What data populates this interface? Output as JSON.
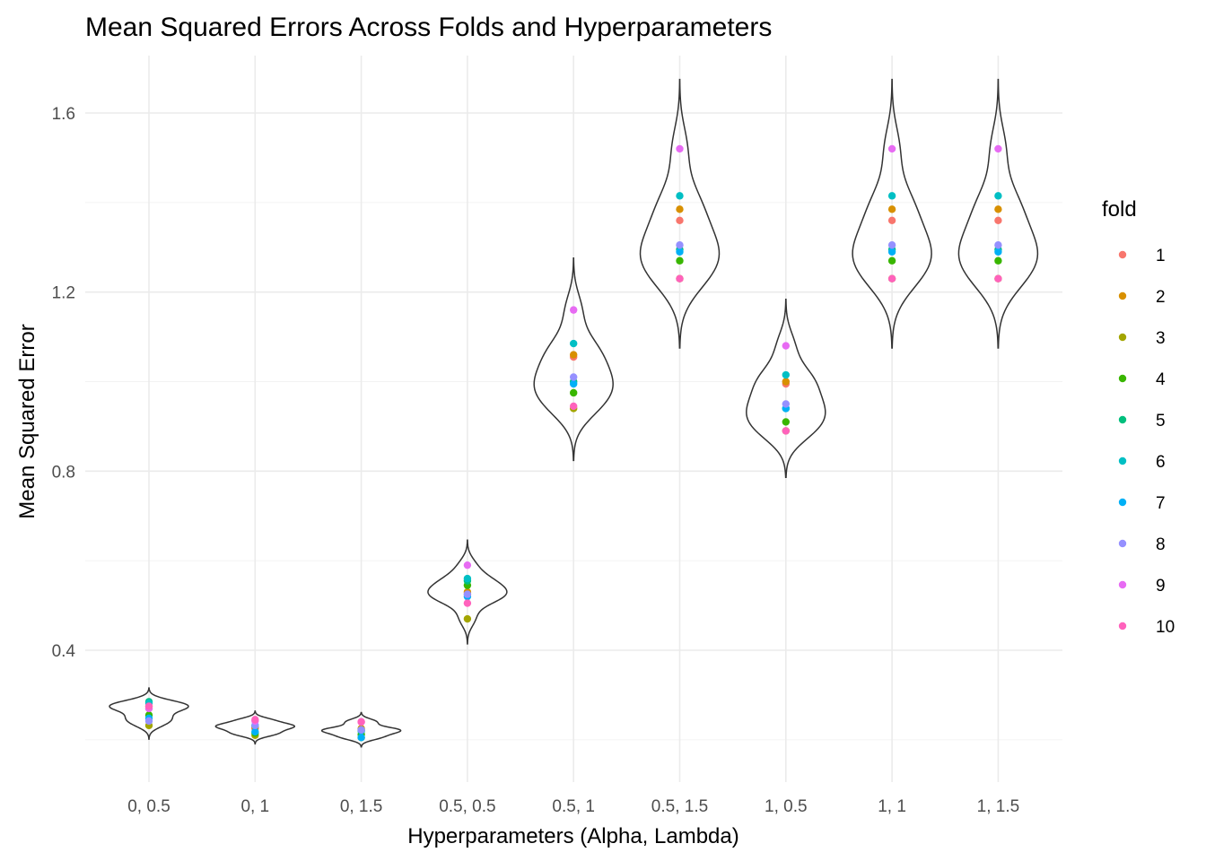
{
  "chart_data": {
    "type": "violin",
    "title": "Mean Squared Errors Across Folds and Hyperparameters",
    "xlabel": "Hyperparameters (Alpha, Lambda)",
    "ylabel": "Mean Squared Error",
    "ylim": [
      0.1,
      1.7
    ],
    "yticks": [
      0.4,
      0.8,
      1.2,
      1.6
    ],
    "ytick_labels": [
      "0.4",
      "0.8",
      "1.2",
      "1.6"
    ],
    "grid": true,
    "legend_position": "right",
    "legend_title": "fold",
    "categories": [
      "0, 0.5",
      "0, 1",
      "0, 1.5",
      "0.5, 0.5",
      "0.5, 1",
      "0.5, 1.5",
      "1, 0.5",
      "1, 1",
      "1, 1.5"
    ],
    "series": [
      {
        "name": "1",
        "color": "#F8766D",
        "values": [
          0.27,
          0.225,
          0.22,
          0.525,
          1.055,
          1.36,
          0.995,
          1.36,
          1.36
        ]
      },
      {
        "name": "2",
        "color": "#D89000",
        "values": [
          0.275,
          0.228,
          0.225,
          0.53,
          1.06,
          1.385,
          1.0,
          1.385,
          1.385
        ]
      },
      {
        "name": "3",
        "color": "#A3A500",
        "values": [
          0.232,
          0.21,
          0.205,
          0.47,
          0.94,
          1.23,
          0.89,
          1.23,
          1.23
        ]
      },
      {
        "name": "4",
        "color": "#39B600",
        "values": [
          0.255,
          0.215,
          0.212,
          0.545,
          0.975,
          1.27,
          0.91,
          1.27,
          1.27
        ]
      },
      {
        "name": "5",
        "color": "#00BF7D",
        "values": [
          0.285,
          0.232,
          0.222,
          0.555,
          1.0,
          1.295,
          0.94,
          1.295,
          1.295
        ]
      },
      {
        "name": "6",
        "color": "#00BFC4",
        "values": [
          0.282,
          0.232,
          0.22,
          0.56,
          1.085,
          1.415,
          1.015,
          1.415,
          1.415
        ]
      },
      {
        "name": "7",
        "color": "#00B0F6",
        "values": [
          0.248,
          0.218,
          0.205,
          0.52,
          0.995,
          1.29,
          0.94,
          1.29,
          1.29
        ]
      },
      {
        "name": "8",
        "color": "#9590FF",
        "values": [
          0.242,
          0.232,
          0.222,
          0.525,
          1.01,
          1.305,
          0.95,
          1.305,
          1.305
        ]
      },
      {
        "name": "9",
        "color": "#E76BF3",
        "values": [
          0.27,
          0.242,
          0.24,
          0.59,
          1.16,
          1.52,
          1.08,
          1.52,
          1.52
        ]
      },
      {
        "name": "10",
        "color": "#FF62BC",
        "values": [
          0.275,
          0.245,
          0.24,
          0.505,
          0.945,
          1.23,
          0.89,
          1.23,
          1.23
        ]
      }
    ]
  }
}
